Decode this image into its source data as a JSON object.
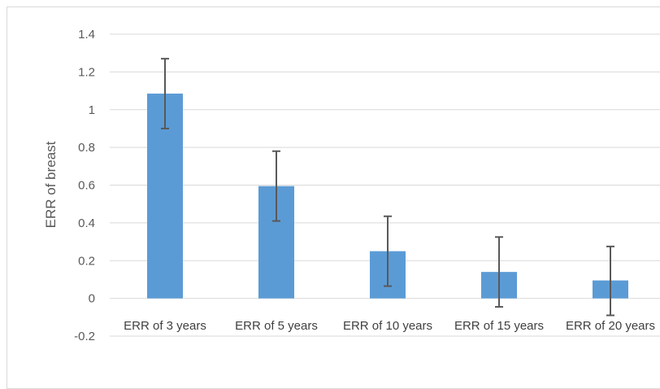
{
  "chart_data": {
    "type": "bar",
    "title": "",
    "xlabel": "",
    "ylabel": "ERR of breast",
    "categories": [
      "ERR of 3 years",
      "ERR of 5 years",
      "ERR of 10 years",
      "ERR of 15 years",
      "ERR of 20 years"
    ],
    "values": [
      1.085,
      0.595,
      0.25,
      0.14,
      0.095
    ],
    "error_upper": [
      1.27,
      0.78,
      0.435,
      0.325,
      0.275
    ],
    "error_lower": [
      0.9,
      0.41,
      0.065,
      -0.045,
      -0.09
    ],
    "ylim": [
      -0.2,
      1.4
    ],
    "yticks": [
      -0.2,
      0,
      0.2,
      0.4,
      0.6,
      0.8,
      1,
      1.2,
      1.4
    ],
    "ytick_labels": [
      "-0.2",
      "0",
      "0.2",
      "0.4",
      "0.6",
      "0.8",
      "1",
      "1.2",
      "1.4"
    ],
    "grid": true,
    "legend": "none",
    "bar_color": "#5b9bd5",
    "error_bar_color": "#595959",
    "gridline_color": "#d9d9d9"
  }
}
